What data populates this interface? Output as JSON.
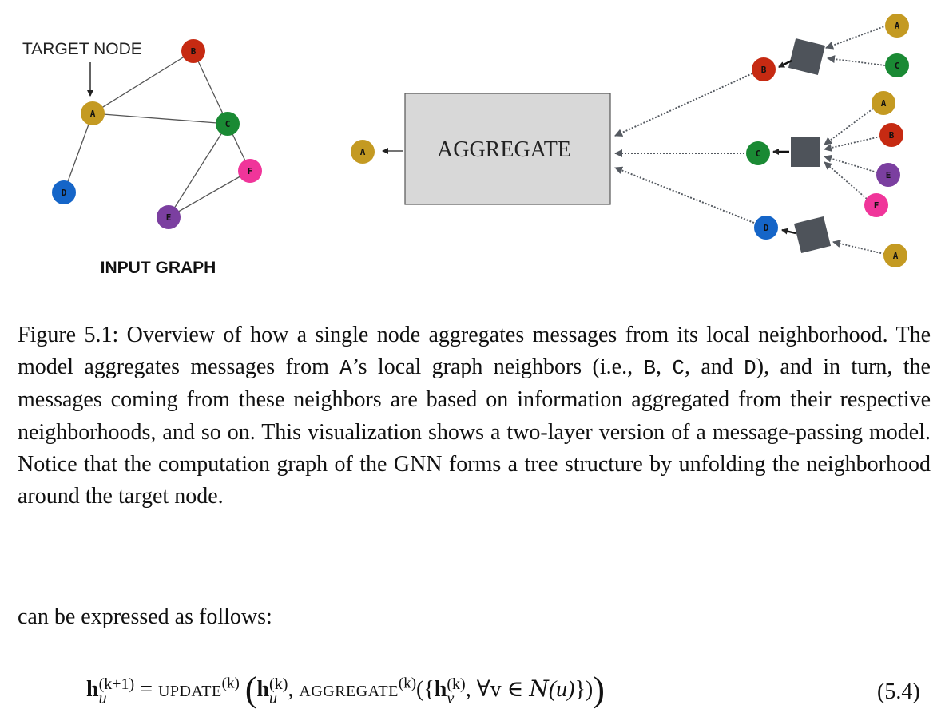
{
  "figure": {
    "input_graph": {
      "target_label": "TARGET NODE",
      "title": "INPUT GRAPH",
      "nodes": [
        {
          "id": "A",
          "label": "A",
          "color": "#c49a22"
        },
        {
          "id": "B",
          "label": "B",
          "color": "#c62a12"
        },
        {
          "id": "C",
          "label": "C",
          "color": "#1a8a34"
        },
        {
          "id": "D",
          "label": "D",
          "color": "#1565c8"
        },
        {
          "id": "E",
          "label": "E",
          "color": "#7b3fa0"
        },
        {
          "id": "F",
          "label": "F",
          "color": "#f0359a"
        }
      ],
      "edges": [
        [
          "A",
          "B"
        ],
        [
          "A",
          "C"
        ],
        [
          "A",
          "D"
        ],
        [
          "B",
          "C"
        ],
        [
          "C",
          "E"
        ],
        [
          "C",
          "F"
        ],
        [
          "E",
          "F"
        ]
      ]
    },
    "computation_tree": {
      "aggregate_label": "AGGREGATE",
      "output_node": "A",
      "children": [
        {
          "node": "B",
          "neighbors": [
            "A",
            "C"
          ]
        },
        {
          "node": "C",
          "neighbors": [
            "A",
            "B",
            "E",
            "F"
          ]
        },
        {
          "node": "D",
          "neighbors": [
            "A"
          ]
        }
      ]
    }
  },
  "caption": {
    "label": "Figure 5.1:",
    "part1": "Overview of how a single node aggregates messages from its local neighborhood. The model aggregates messages from ",
    "code_a": "A",
    "part2": "’s local graph neighbors (i.e., ",
    "code_b": "B",
    "sep1": ", ",
    "code_c": "C",
    "sep2": ", and ",
    "code_d": "D",
    "part3": "), and in turn, the messages coming from these neighbors are based on information aggregated from their respective neighborhoods, and so on. This visualization shows a two-layer version of a message-passing model. Notice that the computation graph of the GNN forms a tree structure by unfolding the neighborhood around the target node."
  },
  "intro_text": "can be expressed as follows:",
  "equation": {
    "h": "h",
    "u": "u",
    "v": "v",
    "k_plus_1": "(k+1)",
    "k": "(k)",
    "equals": " = ",
    "update": "update",
    "aggregate": "aggregate",
    "comma": ", ",
    "open_paren": "(",
    "close_paren": ")",
    "open_set": "({",
    "close_set": "})",
    "forall": ", ∀v ∈ ",
    "neighborhood": "N",
    "nu": "(u)",
    "number": "(5.4)"
  }
}
